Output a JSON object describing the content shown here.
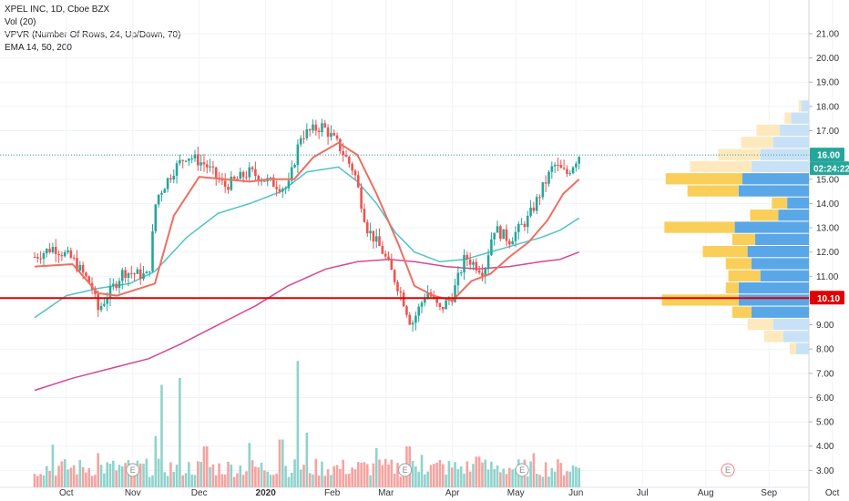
{
  "legend": {
    "symbol_line": "XPEL INC, 1D, Cboe BZX",
    "vol_line": "Vol (20)",
    "vpvr_line": "VPVR (Number Of Rows, 24, Up/Down, 70)",
    "ema_line": "EMA 14, 50, 200"
  },
  "colors": {
    "up": "#26a69a",
    "down": "#ef5350",
    "vol_up": "#8fd3cc",
    "vol_down": "#f5a3a0",
    "ema14": "#ef6f62",
    "ema50": "#4fc3c9",
    "ema200": "#d9478f",
    "support": "#e00000",
    "vpvr_up": "#5aa7e8",
    "vpvr_down": "#f9cf5a",
    "vpvr_up_light": "#c8e1f6",
    "vpvr_down_light": "#fde9bd"
  },
  "badges": {
    "price": "16.00",
    "countdown": "02:24:22",
    "support": "10.10"
  },
  "events": {
    "label": "E"
  },
  "chart_data": {
    "type": "candlestick",
    "x_labels": [
      "Oct",
      "Nov",
      "Dec",
      "2020",
      "Feb",
      "Mar",
      "Apr",
      "May",
      "Jun",
      "Jul",
      "Aug",
      "Sep",
      "Oct"
    ],
    "x_label_positions": [
      0.5,
      1.55,
      2.6,
      3.65,
      4.7,
      5.55,
      6.6,
      7.6,
      8.55,
      9.6,
      10.6,
      11.6,
      12.6
    ],
    "y_ticks": [
      "3.00",
      "4.00",
      "5.00",
      "6.00",
      "7.00",
      "8.00",
      "9.00",
      "10.00",
      "11.00",
      "12.00",
      "13.00",
      "14.00",
      "15.00",
      "16.00",
      "17.00",
      "18.00",
      "19.00",
      "20.00",
      "21.00"
    ],
    "ylim": [
      2.3,
      21.9
    ],
    "last_price": 16.0,
    "support_level": 10.1,
    "ema14_label": "EMA 14",
    "ema50_label": "EMA 50",
    "ema200_label": "EMA 200",
    "price_path": [
      [
        0,
        11.8
      ],
      [
        0.3,
        12.2
      ],
      [
        0.6,
        11.7
      ],
      [
        0.9,
        10.6
      ],
      [
        1.0,
        9.6
      ],
      [
        1.2,
        10.4
      ],
      [
        1.4,
        11.2
      ],
      [
        1.8,
        11.0
      ],
      [
        1.92,
        14.2
      ],
      [
        2.2,
        15.4
      ],
      [
        2.4,
        16.0
      ],
      [
        2.7,
        15.6
      ],
      [
        3.0,
        14.7
      ],
      [
        3.4,
        15.3
      ],
      [
        3.7,
        14.9
      ],
      [
        4.0,
        14.6
      ],
      [
        4.2,
        16.8
      ],
      [
        4.55,
        17.2
      ],
      [
        4.8,
        16.4
      ],
      [
        5.05,
        15.3
      ],
      [
        5.25,
        13.0
      ],
      [
        5.5,
        12.0
      ],
      [
        5.8,
        10.2
      ],
      [
        5.95,
        9.0
      ],
      [
        6.2,
        10.4
      ],
      [
        6.4,
        9.6
      ],
      [
        6.6,
        10.2
      ],
      [
        6.8,
        11.8
      ],
      [
        7.1,
        11.2
      ],
      [
        7.25,
        13.0
      ],
      [
        7.5,
        12.5
      ],
      [
        7.8,
        13.4
      ],
      [
        8.0,
        14.5
      ],
      [
        8.2,
        15.6
      ],
      [
        8.4,
        15.2
      ],
      [
        8.6,
        16.0
      ]
    ],
    "ema14": [
      [
        0,
        11.4
      ],
      [
        0.6,
        11.5
      ],
      [
        1.0,
        10.3
      ],
      [
        1.3,
        10.2
      ],
      [
        1.9,
        10.7
      ],
      [
        2.2,
        13.5
      ],
      [
        2.6,
        15.1
      ],
      [
        3.0,
        15.0
      ],
      [
        3.4,
        14.9
      ],
      [
        3.7,
        15.0
      ],
      [
        4.1,
        15.0
      ],
      [
        4.4,
        15.9
      ],
      [
        4.8,
        16.5
      ],
      [
        5.1,
        16.0
      ],
      [
        5.4,
        14.4
      ],
      [
        5.75,
        12.3
      ],
      [
        6.0,
        10.6
      ],
      [
        6.3,
        10.2
      ],
      [
        6.6,
        10.0
      ],
      [
        6.9,
        10.8
      ],
      [
        7.2,
        11.1
      ],
      [
        7.5,
        11.8
      ],
      [
        7.8,
        12.4
      ],
      [
        8.1,
        13.3
      ],
      [
        8.35,
        14.4
      ],
      [
        8.6,
        15.0
      ]
    ],
    "ema50": [
      [
        0,
        9.3
      ],
      [
        0.5,
        10.2
      ],
      [
        1.0,
        10.5
      ],
      [
        1.5,
        10.7
      ],
      [
        1.9,
        11.2
      ],
      [
        2.4,
        12.6
      ],
      [
        2.9,
        13.6
      ],
      [
        3.4,
        14.0
      ],
      [
        3.9,
        14.5
      ],
      [
        4.3,
        15.3
      ],
      [
        4.8,
        15.5
      ],
      [
        5.1,
        14.9
      ],
      [
        5.4,
        14.0
      ],
      [
        5.7,
        12.8
      ],
      [
        6.0,
        12.0
      ],
      [
        6.4,
        11.6
      ],
      [
        6.8,
        11.7
      ],
      [
        7.2,
        12.0
      ],
      [
        7.6,
        12.3
      ],
      [
        8.0,
        12.6
      ],
      [
        8.3,
        12.9
      ],
      [
        8.6,
        13.4
      ]
    ],
    "ema200": [
      [
        0,
        6.3
      ],
      [
        0.6,
        6.8
      ],
      [
        1.2,
        7.2
      ],
      [
        1.8,
        7.6
      ],
      [
        2.3,
        8.2
      ],
      [
        2.9,
        9.0
      ],
      [
        3.5,
        9.8
      ],
      [
        4.0,
        10.6
      ],
      [
        4.6,
        11.3
      ],
      [
        5.1,
        11.6
      ],
      [
        5.6,
        11.7
      ],
      [
        6.0,
        11.6
      ],
      [
        6.5,
        11.4
      ],
      [
        7.0,
        11.3
      ],
      [
        7.5,
        11.4
      ],
      [
        8.0,
        11.6
      ],
      [
        8.3,
        11.7
      ],
      [
        8.6,
        12.0
      ]
    ],
    "volume_ylim": [
      0,
      8
    ],
    "volume_bursts": [
      [
        0.3,
        2.5
      ],
      [
        1.0,
        2.0
      ],
      [
        1.9,
        3.0
      ],
      [
        2.0,
        6.0
      ],
      [
        2.3,
        6.4
      ],
      [
        2.7,
        2.4
      ],
      [
        3.4,
        2.6
      ],
      [
        3.9,
        2.8
      ],
      [
        4.15,
        7.4
      ],
      [
        4.3,
        3.2
      ],
      [
        5.4,
        2.3
      ],
      [
        5.9,
        2.4
      ],
      [
        6.1,
        1.9
      ],
      [
        6.4,
        1.6
      ],
      [
        7.0,
        1.8
      ],
      [
        7.9,
        2.0
      ]
    ],
    "vpvr_rows": [
      {
        "price": 8.0,
        "up": 0.1,
        "down": 0.05
      },
      {
        "price": 8.5,
        "up": 0.2,
        "down": 0.15
      },
      {
        "price": 9.0,
        "up": 0.28,
        "down": 0.2
      },
      {
        "price": 9.5,
        "up": 0.45,
        "down": 0.15
      },
      {
        "price": 10.0,
        "up": 0.55,
        "down": 0.6
      },
      {
        "price": 10.5,
        "up": 0.55,
        "down": 0.1
      },
      {
        "price": 11.0,
        "up": 0.38,
        "down": 0.25
      },
      {
        "price": 11.5,
        "up": 0.45,
        "down": 0.2
      },
      {
        "price": 12.0,
        "up": 0.48,
        "down": 0.35
      },
      {
        "price": 12.5,
        "up": 0.42,
        "down": 0.18
      },
      {
        "price": 13.0,
        "up": 0.58,
        "down": 0.55
      },
      {
        "price": 13.5,
        "up": 0.24,
        "down": 0.22
      },
      {
        "price": 14.0,
        "up": 0.17,
        "down": 0.12
      },
      {
        "price": 14.5,
        "up": 0.55,
        "down": 0.4
      },
      {
        "price": 15.0,
        "up": 0.52,
        "down": 0.6
      },
      {
        "price": 15.5,
        "up": 0.45,
        "down": 0.48
      },
      {
        "price": 16.0,
        "up": 0.38,
        "down": 0.33
      },
      {
        "price": 16.5,
        "up": 0.28,
        "down": 0.25
      },
      {
        "price": 17.0,
        "up": 0.23,
        "down": 0.18
      },
      {
        "price": 17.5,
        "up": 0.14,
        "down": 0.05
      },
      {
        "price": 18.0,
        "up": 0.06,
        "down": 0.02
      }
    ],
    "event_positions": [
      1.55,
      5.85,
      7.7,
      10.95
    ]
  }
}
